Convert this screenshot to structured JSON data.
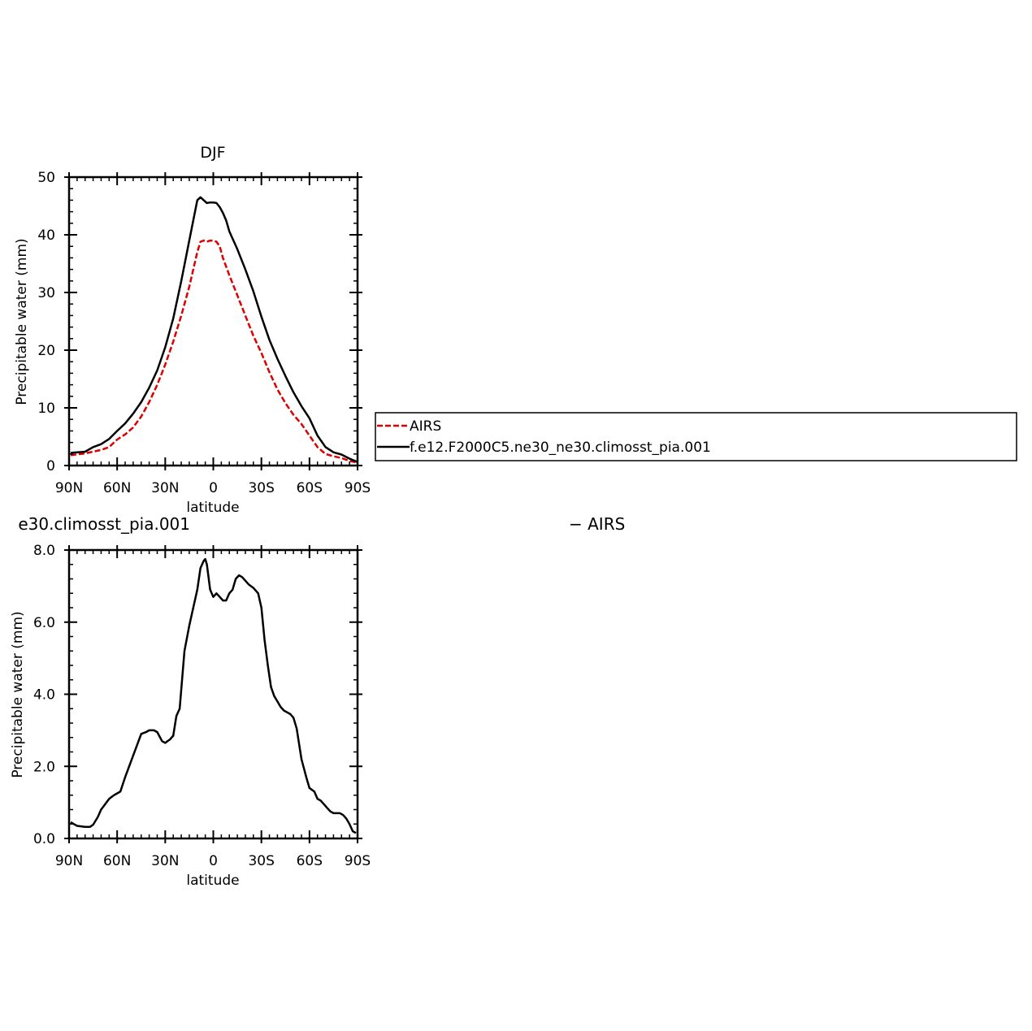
{
  "chart_data": [
    {
      "type": "line",
      "title": "DJF",
      "xlabel": "latitude",
      "ylabel": "Precipitable water (mm)",
      "xlim": [
        -90,
        90
      ],
      "ylim": [
        0,
        50
      ],
      "xticks": [
        -90,
        -60,
        -30,
        0,
        30,
        60,
        90
      ],
      "xtick_labels": [
        "90N",
        "60N",
        "30N",
        "0",
        "30S",
        "60S",
        "90S"
      ],
      "yticks": [
        0,
        10,
        20,
        30,
        40,
        50
      ],
      "ytick_labels": [
        "0",
        "10",
        "20",
        "30",
        "40",
        "50"
      ],
      "legend": "right",
      "series": [
        {
          "name": "AIRS",
          "color": "#dd0000",
          "style": "dashed",
          "x": [
            -89,
            -80,
            -70,
            -65,
            -60,
            -55,
            -50,
            -45,
            -40,
            -35,
            -30,
            -25,
            -20,
            -15,
            -10,
            -8,
            -6,
            -4,
            -2,
            0,
            2,
            4,
            6,
            10,
            15,
            20,
            25,
            30,
            35,
            40,
            45,
            50,
            55,
            60,
            65,
            70,
            75,
            80,
            85,
            90
          ],
          "y": [
            1.8,
            2.1,
            2.7,
            3.2,
            4.5,
            5.4,
            6.6,
            8.5,
            11,
            14,
            17.5,
            21.5,
            26,
            31,
            37,
            38.8,
            39,
            38.8,
            39,
            39,
            38.8,
            38,
            36,
            33,
            29.5,
            26,
            22.5,
            19.5,
            16.2,
            13.2,
            10.8,
            8.8,
            7.2,
            5.2,
            3.2,
            2.0,
            1.6,
            1.3,
            0.8,
            0.5
          ]
        },
        {
          "name": "f.e12.F2000C5.ne30_ne30.climosst_pia.001",
          "color": "#000000",
          "style": "solid",
          "x": [
            -89,
            -80,
            -75,
            -70,
            -65,
            -60,
            -55,
            -50,
            -45,
            -40,
            -35,
            -30,
            -25,
            -20,
            -15,
            -10,
            -8,
            -6,
            -4,
            -2,
            0,
            2,
            4,
            6,
            8,
            10,
            15,
            20,
            25,
            30,
            35,
            40,
            45,
            50,
            55,
            60,
            65,
            70,
            75,
            80,
            85,
            90
          ],
          "y": [
            2.2,
            2.4,
            3.2,
            3.7,
            4.6,
            6.0,
            7.3,
            9.0,
            11,
            13.5,
            16.5,
            20.5,
            25.5,
            32,
            39,
            46,
            46.5,
            46,
            45.5,
            45.6,
            45.6,
            45.5,
            44.8,
            43.8,
            42.5,
            40.6,
            37.5,
            34,
            30.2,
            25.8,
            21.8,
            18.5,
            15.5,
            12.7,
            10.3,
            8.2,
            5.2,
            3.2,
            2.3,
            1.9,
            1.2,
            0.6
          ]
        }
      ]
    },
    {
      "type": "line",
      "title": "e30.climosst_pia.001",
      "title_right": "− AIRS",
      "xlabel": "latitude",
      "ylabel": "Precipitable water (mm)",
      "xlim": [
        -90,
        90
      ],
      "ylim": [
        0,
        8
      ],
      "xticks": [
        -90,
        -60,
        -30,
        0,
        30,
        60,
        90
      ],
      "xtick_labels": [
        "90N",
        "60N",
        "30N",
        "0",
        "30S",
        "60S",
        "90S"
      ],
      "yticks": [
        0,
        2,
        4,
        6,
        8
      ],
      "ytick_labels": [
        "0.0",
        "2.0",
        "4.0",
        "6.0",
        "8.0"
      ],
      "series": [
        {
          "color": "#000000",
          "style": "solid",
          "x": [
            -89,
            -87,
            -85,
            -80,
            -77,
            -75,
            -72,
            -70,
            -65,
            -62,
            -60,
            -58,
            -55,
            -50,
            -45,
            -42,
            -40,
            -37,
            -35,
            -32,
            -30,
            -27,
            -25,
            -23,
            -21,
            -18,
            -15,
            -12,
            -10,
            -8,
            -6,
            -5,
            -4,
            -2,
            0,
            2,
            4,
            6,
            8,
            10,
            12,
            14,
            16,
            18,
            20,
            22,
            25,
            28,
            30,
            32,
            34,
            36,
            38,
            40,
            42,
            44,
            46,
            48,
            50,
            52,
            55,
            58,
            60,
            63,
            65,
            67,
            69,
            71,
            73,
            75,
            77,
            79,
            81,
            83,
            85,
            87,
            89
          ],
          "y": [
            0.45,
            0.4,
            0.35,
            0.32,
            0.32,
            0.38,
            0.6,
            0.8,
            1.1,
            1.2,
            1.25,
            1.3,
            1.7,
            2.3,
            2.9,
            2.95,
            3.0,
            3.0,
            2.95,
            2.7,
            2.65,
            2.75,
            2.85,
            3.4,
            3.6,
            5.2,
            5.9,
            6.5,
            6.9,
            7.5,
            7.7,
            7.75,
            7.6,
            6.9,
            6.7,
            6.8,
            6.7,
            6.6,
            6.6,
            6.8,
            6.9,
            7.2,
            7.3,
            7.25,
            7.15,
            7.05,
            6.95,
            6.8,
            6.4,
            5.5,
            4.8,
            4.2,
            3.95,
            3.8,
            3.65,
            3.55,
            3.5,
            3.45,
            3.35,
            3.05,
            2.2,
            1.7,
            1.4,
            1.3,
            1.1,
            1.05,
            0.95,
            0.85,
            0.75,
            0.7,
            0.7,
            0.7,
            0.65,
            0.55,
            0.4,
            0.2,
            0.15
          ]
        }
      ]
    }
  ]
}
